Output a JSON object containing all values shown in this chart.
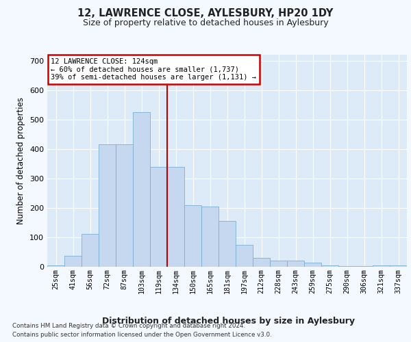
{
  "title1": "12, LAWRENCE CLOSE, AYLESBURY, HP20 1DY",
  "title2": "Size of property relative to detached houses in Aylesbury",
  "xlabel": "Distribution of detached houses by size in Aylesbury",
  "ylabel": "Number of detached properties",
  "categories": [
    "25sqm",
    "41sqm",
    "56sqm",
    "72sqm",
    "87sqm",
    "103sqm",
    "119sqm",
    "134sqm",
    "150sqm",
    "165sqm",
    "181sqm",
    "197sqm",
    "212sqm",
    "228sqm",
    "243sqm",
    "259sqm",
    "275sqm",
    "290sqm",
    "306sqm",
    "321sqm",
    "337sqm"
  ],
  "values": [
    5,
    38,
    112,
    415,
    415,
    525,
    340,
    340,
    210,
    205,
    155,
    75,
    30,
    22,
    20,
    14,
    5,
    3,
    3,
    5,
    5
  ],
  "bar_color": "#c5d8f0",
  "bar_edge_color": "#7aafd4",
  "bg_color": "#ddeaf8",
  "fig_bg_color": "#f4f8ff",
  "grid_color": "#ffffff",
  "vline_color": "#bb0000",
  "annotation_text": "12 LAWRENCE CLOSE: 124sqm\n← 60% of detached houses are smaller (1,737)\n39% of semi-detached houses are larger (1,131) →",
  "annot_facecolor": "#ffffff",
  "annot_edgecolor": "#cc0000",
  "footnote1": "Contains HM Land Registry data © Crown copyright and database right 2024.",
  "footnote2": "Contains public sector information licensed under the Open Government Licence v3.0.",
  "ylim": [
    0,
    720
  ],
  "yticks": [
    0,
    100,
    200,
    300,
    400,
    500,
    600,
    700
  ]
}
